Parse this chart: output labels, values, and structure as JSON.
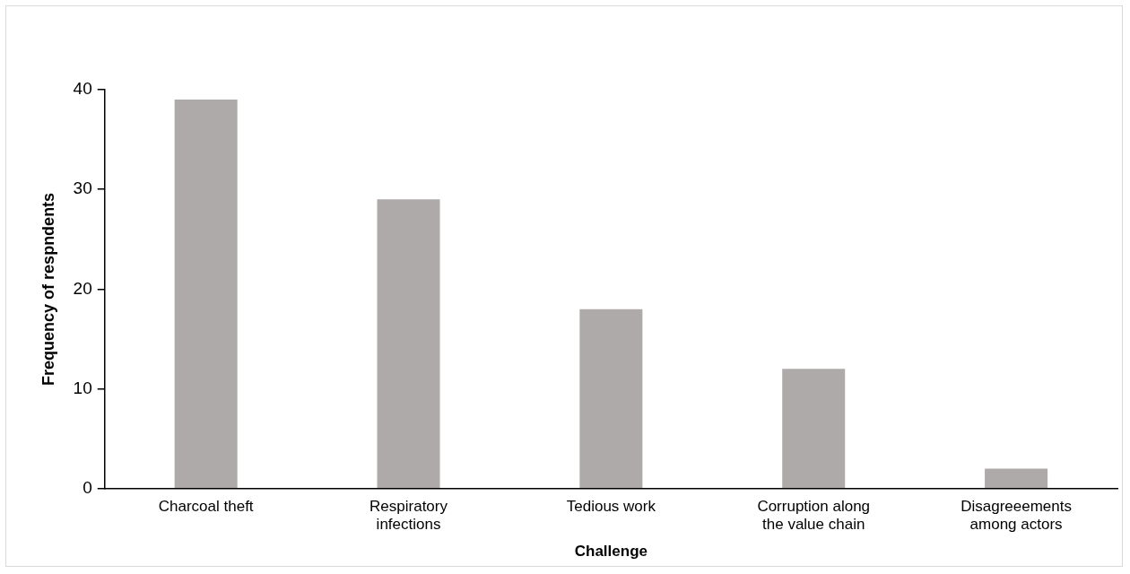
{
  "chart_data": {
    "type": "bar",
    "xlabel": "Challenge",
    "ylabel": "Frequency of respndents",
    "categories": [
      "Charcoal theft",
      "Respiratory infections",
      "Tedious work",
      "Corruption along the value chain",
      "Disagreeements among actors"
    ],
    "values": [
      39,
      29,
      18,
      12,
      2
    ],
    "color": "#aeaaa9",
    "ylim": [
      0,
      40
    ],
    "yticks": [
      0,
      10,
      20,
      30,
      40
    ],
    "grid": false,
    "legend": false
  }
}
